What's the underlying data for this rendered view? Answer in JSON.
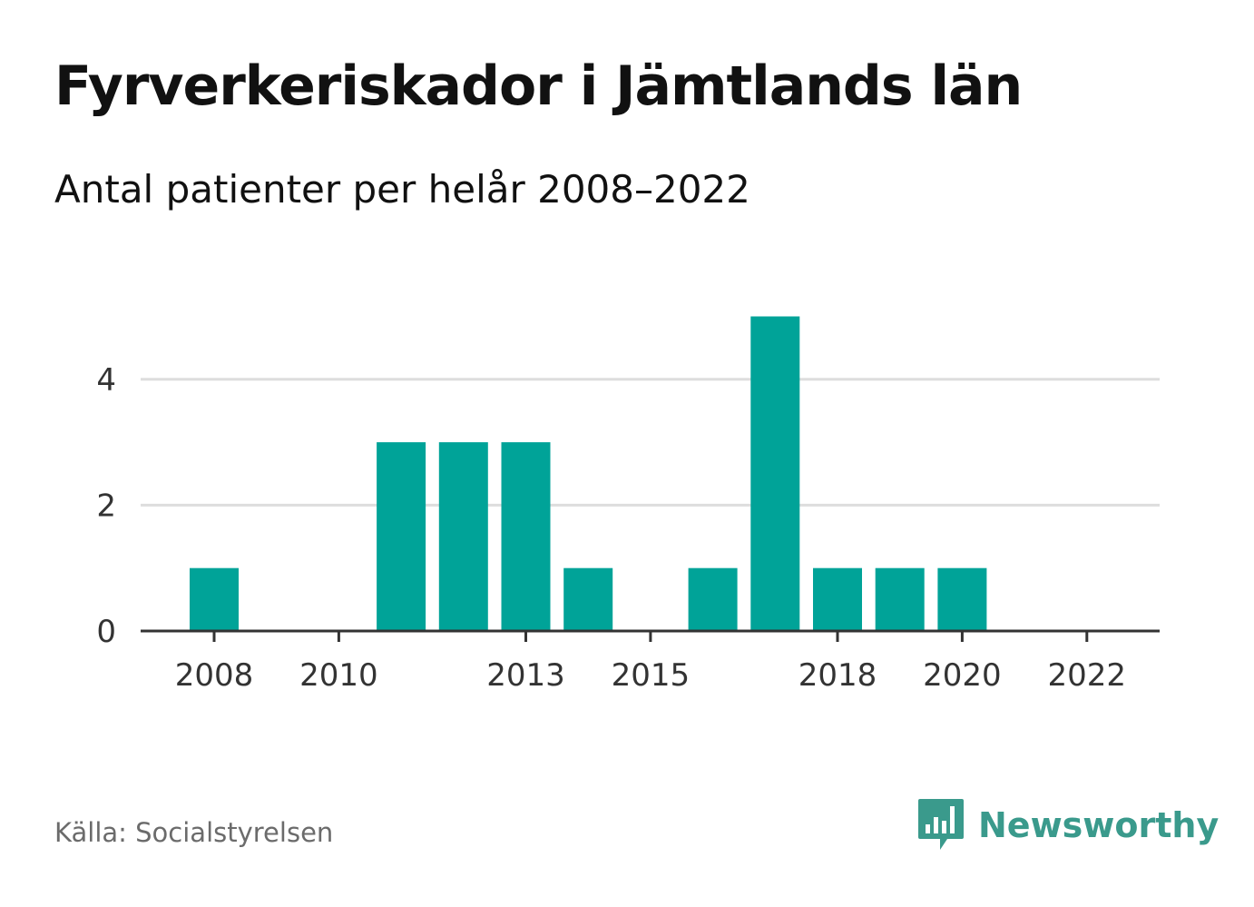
{
  "title": "Fyrverkeriskador i Jämtlands län",
  "subtitle": "Antal patienter per helår 2008–2022",
  "source": "Källa: Socialstyrelsen",
  "brand": {
    "name": "Newsworthy",
    "icon": "newsworthy-logo-icon",
    "color": "#3a9a8c"
  },
  "colors": {
    "bar": "#00a398",
    "grid": "#dddddd",
    "axis": "#333333"
  },
  "chart_data": {
    "type": "bar",
    "title": "Fyrverkeriskador i Jämtlands län",
    "subtitle": "Antal patienter per helår 2008–2022",
    "xlabel": "",
    "ylabel": "",
    "categories": [
      2008,
      2009,
      2010,
      2011,
      2012,
      2013,
      2014,
      2015,
      2016,
      2017,
      2018,
      2019,
      2020,
      2021,
      2022
    ],
    "values": [
      1,
      0,
      0,
      3,
      3,
      3,
      1,
      0,
      1,
      5,
      1,
      1,
      1,
      0,
      0
    ],
    "x_tick_labels": [
      "2008",
      "2010",
      "2013",
      "2015",
      "2018",
      "2020",
      "2022"
    ],
    "y_ticks": [
      0,
      2,
      4
    ],
    "ylim": [
      0,
      5
    ],
    "grid": true,
    "legend": "none"
  }
}
